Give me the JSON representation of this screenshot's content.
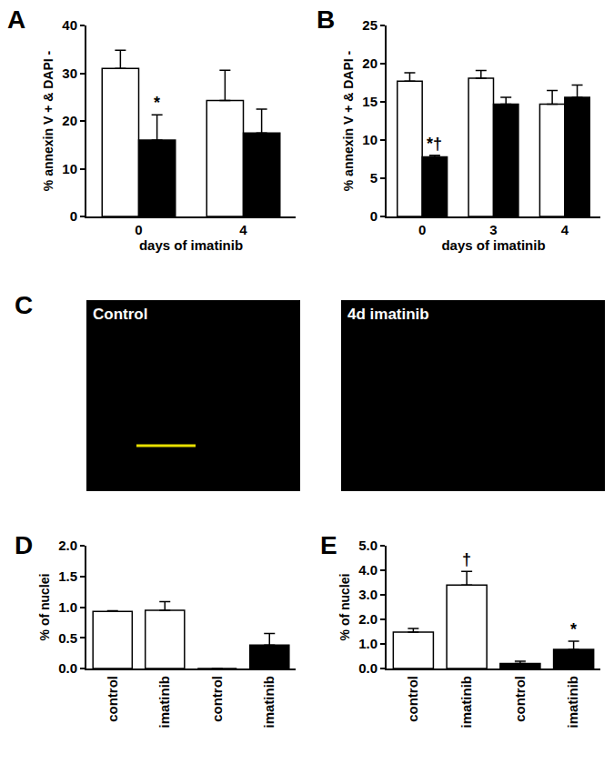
{
  "chart_data": [
    {
      "panel": "A",
      "type": "bar",
      "ylabel": "% annexin V + & DAPI -",
      "xlabel": "days of imatinib",
      "categories": [
        "0",
        "4"
      ],
      "series": [
        {
          "color": "#ffffff",
          "values": [
            31,
            24.3
          ],
          "errors": [
            3.8,
            6.3
          ],
          "notes": [
            null,
            null
          ]
        },
        {
          "color": "#000000",
          "values": [
            16,
            17.5
          ],
          "errors": [
            5.3,
            5
          ],
          "notes": [
            "*",
            null
          ]
        }
      ],
      "ylim": [
        0,
        40
      ],
      "yticks": [
        0,
        10,
        20,
        30,
        40
      ]
    },
    {
      "panel": "B",
      "type": "bar",
      "ylabel": "% annexin V + & DAPI -",
      "xlabel": "days of imatinib",
      "categories": [
        "0",
        "3",
        "4"
      ],
      "series": [
        {
          "color": "#ffffff",
          "values": [
            17.7,
            18.1,
            14.7
          ],
          "errors": [
            1.1,
            1.0,
            1.8
          ],
          "notes": [
            null,
            null,
            null
          ]
        },
        {
          "color": "#000000",
          "values": [
            7.8,
            14.7,
            15.6
          ],
          "errors": [
            0.2,
            0.9,
            1.6
          ],
          "notes": [
            "*†",
            null,
            null
          ]
        }
      ],
      "ylim": [
        0,
        25
      ],
      "yticks": [
        0,
        5,
        10,
        15,
        20,
        25
      ]
    },
    {
      "panel": "C",
      "type": "image",
      "images": [
        {
          "label": "Control"
        },
        {
          "label": "4d imatinib"
        }
      ]
    },
    {
      "panel": "D",
      "type": "bar",
      "ylabel": "% of nuclei",
      "categories": [
        "control",
        "imatinib",
        "control",
        "imatinib"
      ],
      "series": [
        {
          "color": "#ffffff",
          "values": [
            0.93,
            0.95,
            null,
            null
          ],
          "errors": [
            0.01,
            0.14,
            null,
            null
          ],
          "notes": [
            null,
            null,
            null,
            null
          ]
        },
        {
          "color": "#000000",
          "values": [
            null,
            null,
            0,
            0.38
          ],
          "errors": [
            null,
            null,
            0,
            0.19
          ],
          "notes": [
            null,
            null,
            null,
            null
          ]
        }
      ],
      "ylim": [
        0,
        2
      ],
      "yticks": [
        {
          "value": 0,
          "label": "0.0"
        },
        {
          "value": 0.5,
          "label": "0.5"
        },
        {
          "value": 1,
          "label": "1.0"
        },
        {
          "value": 1.5,
          "label": "1.5"
        },
        {
          "value": 2,
          "label": "2.0"
        }
      ]
    },
    {
      "panel": "E",
      "type": "bar",
      "ylabel": "% of nuclei",
      "categories": [
        "control",
        "imatinib",
        "control",
        "imatinib"
      ],
      "series": [
        {
          "color": "#ffffff",
          "values": [
            1.48,
            3.4,
            null,
            null
          ],
          "errors": [
            0.15,
            0.55,
            null,
            null
          ],
          "notes": [
            null,
            "†",
            null,
            null
          ]
        },
        {
          "color": "#000000",
          "values": [
            null,
            null,
            0.2,
            0.78
          ],
          "errors": [
            null,
            null,
            0.1,
            0.33
          ],
          "notes": [
            null,
            null,
            null,
            "*"
          ]
        }
      ],
      "ylim": [
        0,
        5
      ],
      "yticks": [
        {
          "value": 0,
          "label": "0.0"
        },
        {
          "value": 1,
          "label": "1.0"
        },
        {
          "value": 2,
          "label": "2.0"
        },
        {
          "value": 3,
          "label": "3.0"
        },
        {
          "value": 4,
          "label": "4.0"
        },
        {
          "value": 5,
          "label": "5.0"
        }
      ]
    }
  ]
}
